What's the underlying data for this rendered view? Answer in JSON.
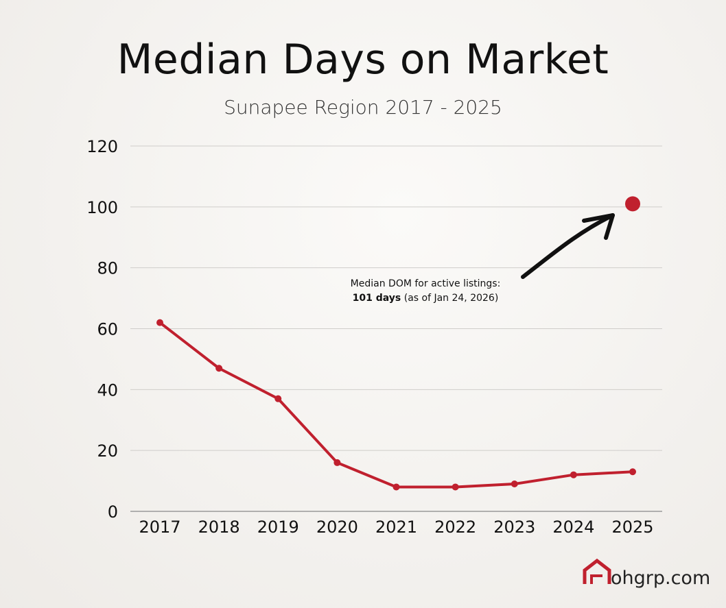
{
  "chart_data": {
    "type": "line",
    "title": "Median Days on Market",
    "subtitle": "Sunapee Region 2017 - 2025",
    "xlabel": "",
    "ylabel": "",
    "categories": [
      "2017",
      "2018",
      "2019",
      "2020",
      "2021",
      "2022",
      "2023",
      "2024",
      "2025"
    ],
    "series": [
      {
        "name": "Median Days on Market",
        "color": "#c0202e",
        "values": [
          62,
          47,
          37,
          16,
          8,
          8,
          9,
          12,
          13
        ]
      }
    ],
    "highlight_point": {
      "label": "Active listings",
      "value": 101,
      "color": "#c0202e"
    },
    "ylim": [
      0,
      120
    ],
    "yticks": [
      "0",
      "20",
      "40",
      "60",
      "80",
      "100",
      "120"
    ],
    "grid": true,
    "annotation": {
      "line1": "Median DOM for active listings:",
      "bold": "101 days",
      "rest": " (as of Jan 24, 2026)"
    }
  },
  "branding": {
    "logo_text": "ohgrp.com",
    "logo_color": "#c0202e"
  }
}
